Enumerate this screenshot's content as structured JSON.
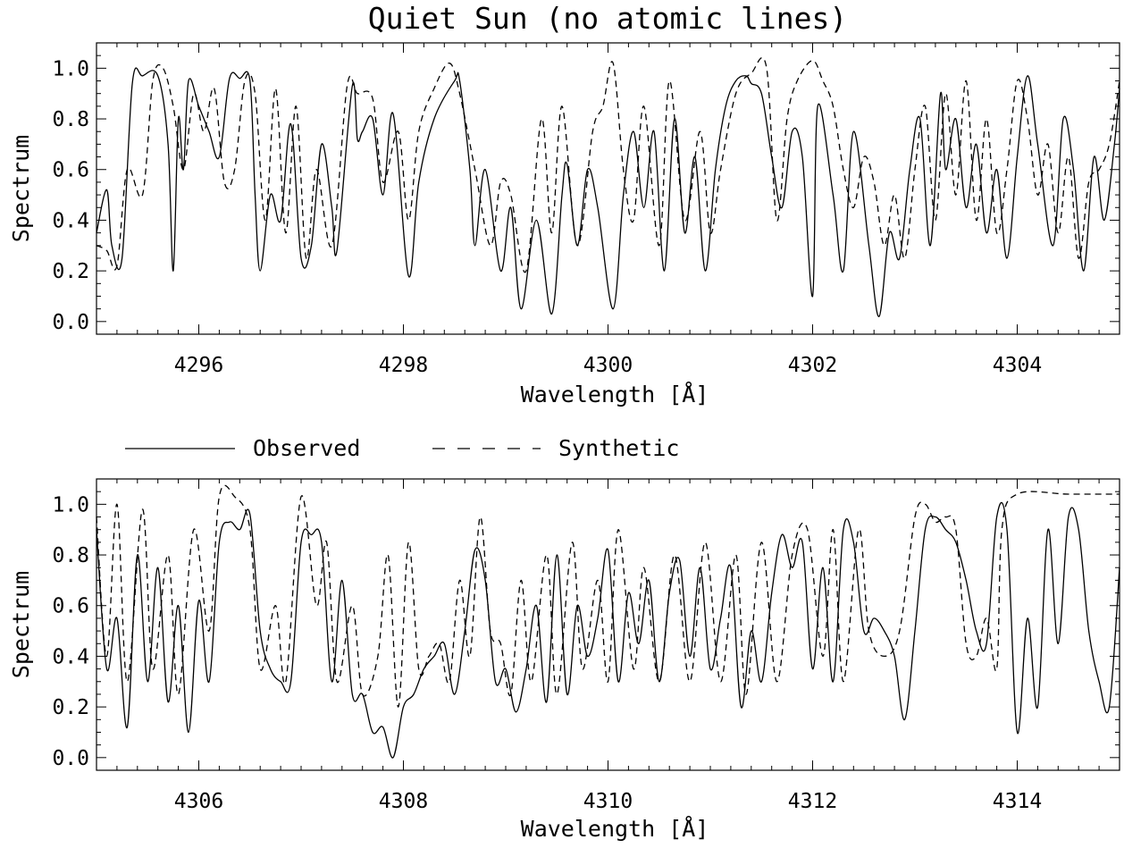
{
  "title": "Quiet Sun (no atomic lines)",
  "legend": {
    "observed": "Observed",
    "synthetic": "Synthetic"
  },
  "colors": {
    "line": "#000000",
    "background": "#ffffff"
  },
  "chart_data": [
    {
      "type": "line",
      "xlabel": "Wavelength [Å]",
      "ylabel": "Spectrum",
      "xlim": [
        4295.0,
        4305.0
      ],
      "ylim": [
        -0.05,
        1.1
      ],
      "xticks": [
        4296,
        4298,
        4300,
        4302,
        4304
      ],
      "xtick_labels": [
        "4296",
        "4298",
        "4300",
        "4302",
        "4304"
      ],
      "yticks": [
        0.0,
        0.2,
        0.4,
        0.6,
        0.8,
        1.0
      ],
      "ytick_labels": [
        "0.0",
        "0.2",
        "0.4",
        "0.6",
        "0.8",
        "1.0"
      ],
      "series": [
        {
          "name": "Observed",
          "style": "solid",
          "x": [
            4295.0,
            4295.1,
            4295.15,
            4295.25,
            4295.35,
            4295.45,
            4295.6,
            4295.7,
            4295.75,
            4295.8,
            4295.85,
            4295.9,
            4296.0,
            4296.1,
            4296.2,
            4296.3,
            4296.4,
            4296.5,
            4296.55,
            4296.6,
            4296.7,
            4296.8,
            4296.9,
            4297.0,
            4297.1,
            4297.2,
            4297.3,
            4297.35,
            4297.5,
            4297.55,
            4297.6,
            4297.7,
            4297.8,
            4297.9,
            4298.05,
            4298.15,
            4298.3,
            4298.5,
            4298.55,
            4298.65,
            4298.7,
            4298.8,
            4298.95,
            4299.05,
            4299.15,
            4299.3,
            4299.45,
            4299.55,
            4299.6,
            4299.7,
            4299.8,
            4299.9,
            4300.05,
            4300.15,
            4300.25,
            4300.35,
            4300.45,
            4300.55,
            4300.65,
            4300.75,
            4300.85,
            4300.95,
            4301.05,
            4301.15,
            4301.25,
            4301.35,
            4301.4,
            4301.5,
            4301.6,
            4301.7,
            4301.8,
            4301.9,
            4302.0,
            4302.05,
            4302.2,
            4302.3,
            4302.4,
            4302.55,
            4302.65,
            4302.75,
            4302.85,
            4302.95,
            4303.05,
            4303.15,
            4303.25,
            4303.3,
            4303.4,
            4303.5,
            4303.6,
            4303.7,
            4303.8,
            4303.9,
            4304.0,
            4304.1,
            4304.2,
            4304.35,
            4304.45,
            4304.55,
            4304.65,
            4304.75,
            4304.85,
            4304.95,
            4305.0
          ],
          "y": [
            0.35,
            0.52,
            0.3,
            0.25,
            0.94,
            0.97,
            0.97,
            0.7,
            0.2,
            0.8,
            0.6,
            0.95,
            0.85,
            0.75,
            0.65,
            0.96,
            0.96,
            0.95,
            0.5,
            0.2,
            0.5,
            0.4,
            0.78,
            0.25,
            0.3,
            0.7,
            0.45,
            0.28,
            0.93,
            0.72,
            0.75,
            0.8,
            0.5,
            0.82,
            0.18,
            0.55,
            0.8,
            0.95,
            0.95,
            0.6,
            0.3,
            0.6,
            0.2,
            0.45,
            0.05,
            0.4,
            0.03,
            0.5,
            0.62,
            0.3,
            0.6,
            0.45,
            0.05,
            0.5,
            0.75,
            0.45,
            0.75,
            0.2,
            0.8,
            0.35,
            0.65,
            0.2,
            0.6,
            0.85,
            0.95,
            0.97,
            0.94,
            0.9,
            0.65,
            0.45,
            0.75,
            0.65,
            0.1,
            0.85,
            0.5,
            0.2,
            0.75,
            0.3,
            0.02,
            0.35,
            0.25,
            0.6,
            0.8,
            0.3,
            0.9,
            0.6,
            0.8,
            0.45,
            0.7,
            0.35,
            0.6,
            0.25,
            0.65,
            0.97,
            0.7,
            0.3,
            0.8,
            0.6,
            0.2,
            0.65,
            0.4,
            0.7,
            0.92
          ]
        },
        {
          "name": "Synthetic",
          "style": "dashed",
          "x": [
            4295.0,
            4295.1,
            4295.2,
            4295.3,
            4295.45,
            4295.55,
            4295.65,
            4295.75,
            4295.85,
            4295.95,
            4296.05,
            4296.15,
            4296.25,
            4296.35,
            4296.45,
            4296.55,
            4296.65,
            4296.75,
            4296.85,
            4296.95,
            4297.05,
            4297.15,
            4297.3,
            4297.45,
            4297.55,
            4297.7,
            4297.8,
            4297.95,
            4298.05,
            4298.15,
            4298.3,
            4298.45,
            4298.55,
            4298.7,
            4298.85,
            4298.95,
            4299.05,
            4299.2,
            4299.35,
            4299.45,
            4299.55,
            4299.7,
            4299.85,
            4299.95,
            4300.05,
            4300.15,
            4300.25,
            4300.35,
            4300.5,
            4300.6,
            4300.75,
            4300.9,
            4301.0,
            4301.1,
            4301.25,
            4301.4,
            4301.55,
            4301.65,
            4301.75,
            4301.85,
            4302.0,
            4302.1,
            4302.2,
            4302.3,
            4302.4,
            4302.5,
            4302.6,
            4302.7,
            4302.8,
            4302.9,
            4303.0,
            4303.1,
            4303.2,
            4303.3,
            4303.4,
            4303.5,
            4303.6,
            4303.7,
            4303.8,
            4303.9,
            4304.0,
            4304.1,
            4304.2,
            4304.3,
            4304.4,
            4304.5,
            4304.6,
            4304.7,
            4304.8,
            4304.9,
            4305.0
          ],
          "y": [
            0.3,
            0.28,
            0.22,
            0.6,
            0.5,
            0.95,
            1.0,
            0.85,
            0.6,
            0.9,
            0.75,
            0.92,
            0.55,
            0.6,
            0.95,
            0.9,
            0.4,
            0.92,
            0.35,
            0.85,
            0.25,
            0.6,
            0.3,
            0.93,
            0.9,
            0.88,
            0.55,
            0.75,
            0.4,
            0.75,
            0.92,
            1.02,
            0.9,
            0.6,
            0.3,
            0.55,
            0.5,
            0.2,
            0.8,
            0.35,
            0.85,
            0.3,
            0.75,
            0.85,
            1.02,
            0.6,
            0.4,
            0.85,
            0.3,
            0.95,
            0.4,
            0.75,
            0.35,
            0.6,
            0.9,
            0.98,
            1.0,
            0.4,
            0.8,
            0.95,
            1.03,
            0.95,
            0.85,
            0.6,
            0.45,
            0.65,
            0.55,
            0.3,
            0.5,
            0.25,
            0.6,
            0.85,
            0.4,
            0.9,
            0.5,
            0.95,
            0.4,
            0.8,
            0.35,
            0.6,
            0.95,
            0.8,
            0.5,
            0.7,
            0.35,
            0.65,
            0.25,
            0.55,
            0.6,
            0.7,
            0.95
          ]
        }
      ]
    },
    {
      "type": "line",
      "xlabel": "Wavelength [Å]",
      "ylabel": "Spectrum",
      "xlim": [
        4305.0,
        4315.0
      ],
      "ylim": [
        -0.05,
        1.1
      ],
      "xticks": [
        4306,
        4308,
        4310,
        4312,
        4314
      ],
      "xtick_labels": [
        "4306",
        "4308",
        "4310",
        "4312",
        "4314"
      ],
      "yticks": [
        0.0,
        0.2,
        0.4,
        0.6,
        0.8,
        1.0
      ],
      "ytick_labels": [
        "0.0",
        "0.2",
        "0.4",
        "0.6",
        "0.8",
        "1.0"
      ],
      "series": [
        {
          "name": "Observed",
          "style": "solid",
          "x": [
            4305.0,
            4305.1,
            4305.2,
            4305.3,
            4305.4,
            4305.5,
            4305.6,
            4305.7,
            4305.8,
            4305.9,
            4306.0,
            4306.1,
            4306.2,
            4306.3,
            4306.4,
            4306.5,
            4306.6,
            4306.7,
            4306.8,
            4306.9,
            4307.0,
            4307.1,
            4307.2,
            4307.3,
            4307.4,
            4307.5,
            4307.6,
            4307.7,
            4307.8,
            4307.9,
            4308.0,
            4308.1,
            4308.2,
            4308.3,
            4308.4,
            4308.5,
            4308.6,
            4308.7,
            4308.8,
            4308.9,
            4309.0,
            4309.1,
            4309.2,
            4309.3,
            4309.4,
            4309.5,
            4309.6,
            4309.7,
            4309.8,
            4309.9,
            4310.0,
            4310.1,
            4310.2,
            4310.3,
            4310.4,
            4310.5,
            4310.6,
            4310.7,
            4310.8,
            4310.9,
            4311.0,
            4311.1,
            4311.2,
            4311.3,
            4311.4,
            4311.5,
            4311.6,
            4311.7,
            4311.8,
            4311.9,
            4312.0,
            4312.1,
            4312.2,
            4312.3,
            4312.4,
            4312.5,
            4312.6,
            4312.7,
            4312.8,
            4312.9,
            4313.0,
            4313.1,
            4313.2,
            4313.3,
            4313.4,
            4313.5,
            4313.6,
            4313.7,
            4313.8,
            4313.9,
            4314.0,
            4314.1,
            4314.2,
            4314.3,
            4314.4,
            4314.5,
            4314.6,
            4314.7,
            4314.8,
            4314.9,
            4315.0
          ],
          "y": [
            0.9,
            0.35,
            0.55,
            0.12,
            0.8,
            0.3,
            0.75,
            0.22,
            0.6,
            0.1,
            0.62,
            0.3,
            0.85,
            0.93,
            0.9,
            0.96,
            0.5,
            0.35,
            0.3,
            0.3,
            0.85,
            0.88,
            0.85,
            0.3,
            0.7,
            0.25,
            0.25,
            0.1,
            0.12,
            0.0,
            0.2,
            0.25,
            0.35,
            0.4,
            0.45,
            0.25,
            0.5,
            0.82,
            0.7,
            0.3,
            0.35,
            0.18,
            0.35,
            0.6,
            0.22,
            0.8,
            0.25,
            0.6,
            0.4,
            0.55,
            0.82,
            0.3,
            0.65,
            0.45,
            0.7,
            0.3,
            0.65,
            0.78,
            0.4,
            0.75,
            0.35,
            0.55,
            0.75,
            0.2,
            0.5,
            0.3,
            0.65,
            0.88,
            0.75,
            0.85,
            0.35,
            0.75,
            0.3,
            0.9,
            0.85,
            0.5,
            0.55,
            0.5,
            0.4,
            0.15,
            0.5,
            0.9,
            0.95,
            0.9,
            0.85,
            0.7,
            0.5,
            0.45,
            0.95,
            0.9,
            0.1,
            0.55,
            0.2,
            0.9,
            0.45,
            0.95,
            0.9,
            0.5,
            0.3,
            0.2,
            0.75
          ]
        },
        {
          "name": "Synthetic",
          "style": "dashed",
          "x": [
            4305.0,
            4305.1,
            4305.2,
            4305.3,
            4305.45,
            4305.55,
            4305.7,
            4305.8,
            4305.95,
            4306.1,
            4306.2,
            4306.35,
            4306.5,
            4306.6,
            4306.75,
            4306.85,
            4307.0,
            4307.15,
            4307.25,
            4307.35,
            4307.5,
            4307.6,
            4307.75,
            4307.85,
            4307.95,
            4308.05,
            4308.15,
            4308.25,
            4308.35,
            4308.45,
            4308.55,
            4308.65,
            4308.75,
            4308.85,
            4308.95,
            4309.05,
            4309.15,
            4309.25,
            4309.4,
            4309.5,
            4309.65,
            4309.75,
            4309.9,
            4310.0,
            4310.1,
            4310.25,
            4310.35,
            4310.5,
            4310.65,
            4310.8,
            4310.95,
            4311.1,
            4311.25,
            4311.35,
            4311.5,
            4311.65,
            4311.8,
            4311.95,
            4312.1,
            4312.2,
            4312.3,
            4312.45,
            4312.55,
            4312.7,
            4312.85,
            4313.0,
            4313.1,
            4313.2,
            4313.3,
            4313.4,
            4313.5,
            4313.6,
            4313.7,
            4313.8,
            4313.85,
            4314.0,
            4314.5,
            4315.0
          ],
          "y": [
            0.95,
            0.4,
            1.0,
            0.3,
            0.98,
            0.35,
            0.8,
            0.25,
            0.9,
            0.5,
            1.03,
            1.03,
            0.9,
            0.35,
            0.6,
            0.3,
            1.03,
            0.6,
            0.85,
            0.3,
            0.6,
            0.25,
            0.4,
            0.8,
            0.2,
            0.85,
            0.35,
            0.4,
            0.45,
            0.3,
            0.7,
            0.4,
            0.95,
            0.5,
            0.45,
            0.25,
            0.7,
            0.3,
            0.8,
            0.25,
            0.85,
            0.35,
            0.7,
            0.3,
            0.9,
            0.35,
            0.75,
            0.3,
            0.8,
            0.3,
            0.85,
            0.3,
            0.8,
            0.25,
            0.85,
            0.3,
            0.8,
            0.9,
            0.4,
            0.9,
            0.3,
            0.9,
            0.5,
            0.4,
            0.5,
            0.95,
            1.0,
            0.93,
            0.95,
            0.9,
            0.45,
            0.4,
            0.55,
            0.35,
            0.9,
            1.04,
            1.04,
            1.04
          ]
        }
      ]
    }
  ]
}
